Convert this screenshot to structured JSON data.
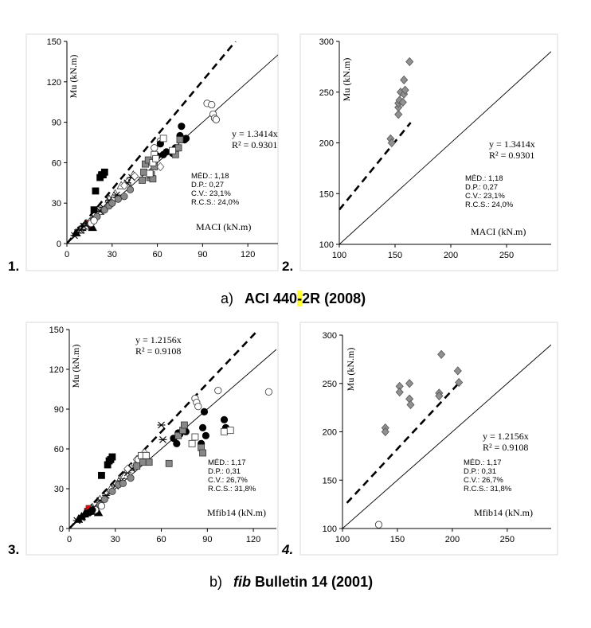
{
  "captions": {
    "a_letter": "a)",
    "a_pre": "ACI 440",
    "a_hl": "-",
    "a_post": "2R (2008)",
    "b_letter": "b)",
    "b_italic": "fib",
    "b_post": " Bulletin 14 (2001)"
  },
  "chart_data": [
    {
      "id": "p1",
      "panel_label": "1.",
      "type": "scatter",
      "xlabel": "MACI (kN.m)",
      "ylabel": "Mu (kN.m)",
      "xlim": [
        0,
        140
      ],
      "ylim": [
        0,
        150
      ],
      "xticks": [
        0,
        30,
        60,
        90,
        120
      ],
      "yticks": [
        0,
        30,
        60,
        90,
        120,
        150
      ],
      "trend_slope": 1.3414,
      "equation": "y = 1.3414x",
      "r2": "R² = 0.9301",
      "stats": [
        "MÉD.: 1,18",
        "D.P.: 0,27",
        "C.V.: 23,1%",
        "R.C.S.: 24,0%"
      ],
      "series": [
        {
          "marker": "square",
          "fill": "#000000",
          "x": [
            18,
            19,
            22,
            23,
            24,
            25
          ],
          "y": [
            25,
            39,
            49,
            51,
            51,
            53
          ]
        },
        {
          "marker": "square",
          "fill": "#ff0000",
          "x": [
            13,
            14
          ],
          "y": [
            13,
            15
          ]
        },
        {
          "marker": "triangle",
          "fill": "#000000",
          "x": [
            6,
            8,
            10,
            12,
            17
          ],
          "y": [
            8,
            10,
            12,
            14,
            12
          ]
        },
        {
          "marker": "triangle",
          "fill": "#ffffff",
          "x": [
            9,
            12,
            15,
            17,
            22,
            28,
            32,
            36,
            40,
            44
          ],
          "y": [
            10,
            13,
            16,
            18,
            24,
            33,
            37,
            43,
            46,
            51
          ]
        },
        {
          "marker": "cross",
          "fill": "#000000",
          "x": [
            5,
            7,
            9,
            11,
            14,
            18,
            22,
            24,
            28,
            33,
            40,
            43
          ],
          "y": [
            6,
            8,
            10,
            13,
            15,
            19,
            24,
            27,
            32,
            36,
            45,
            49
          ]
        },
        {
          "marker": "diamond",
          "fill": "#ffffff",
          "x": [
            30,
            38,
            45,
            55,
            62
          ],
          "y": [
            30,
            43,
            50,
            61,
            57
          ]
        },
        {
          "marker": "circle",
          "fill": "#888888",
          "x": [
            20,
            25,
            28,
            30,
            34,
            38,
            42
          ],
          "y": [
            20,
            25,
            28,
            30,
            33,
            35,
            40
          ]
        },
        {
          "marker": "circle",
          "fill": "#ffffff",
          "x": [
            16,
            18,
            58,
            62,
            93,
            96,
            97,
            98,
            99
          ],
          "y": [
            15,
            17,
            71,
            76,
            104,
            103,
            96,
            93,
            92
          ]
        },
        {
          "marker": "circle",
          "fill": "#000000",
          "x": [
            60,
            62,
            64,
            66,
            70,
            72,
            75,
            76,
            78,
            79
          ],
          "y": [
            65,
            74,
            66,
            68,
            67,
            71,
            80,
            87,
            77,
            78
          ]
        },
        {
          "marker": "square",
          "fill": "#888888",
          "x": [
            50,
            51,
            52,
            54,
            55,
            56,
            57,
            58,
            72,
            74,
            75
          ],
          "y": [
            47,
            53,
            59,
            62,
            49,
            51,
            48,
            57,
            66,
            71,
            77
          ]
        },
        {
          "marker": "square",
          "fill": "#ffffff",
          "x": [
            55,
            57,
            58,
            59,
            64,
            70
          ],
          "y": [
            52,
            60,
            66,
            63,
            78,
            69
          ]
        }
      ]
    },
    {
      "id": "p2",
      "panel_label": "2.",
      "type": "scatter",
      "xlabel": "MACI (kN.m)",
      "ylabel": "Mu (kN.m)",
      "xlim": [
        100,
        290
      ],
      "ylim": [
        100,
        300
      ],
      "xticks": [
        100,
        150,
        200,
        250
      ],
      "yticks": [
        100,
        150,
        200,
        250,
        300
      ],
      "trend_slope": 1.3414,
      "equation": "y = 1.3414x",
      "r2": "R² = 0.9301",
      "stats": [
        "MÉD.: 1,18",
        "D.P.: 0,27",
        "C.V.: 23,1%",
        "R.C.S.: 24,0%"
      ],
      "series": [
        {
          "marker": "diamond",
          "fill": "#909090",
          "x": [
            146,
            147,
            153,
            153,
            153,
            154,
            155,
            157,
            158,
            158,
            159,
            163
          ],
          "y": [
            204,
            200,
            228,
            235,
            239,
            242,
            250,
            240,
            248,
            262,
            252,
            280
          ]
        }
      ]
    },
    {
      "id": "p3",
      "panel_label": "3.",
      "type": "scatter",
      "xlabel": "Mfib14 (kN.m)",
      "ylabel": "Mu (kN.m)",
      "xlim": [
        0,
        135
      ],
      "ylim": [
        0,
        150
      ],
      "xticks": [
        0,
        30,
        60,
        90,
        120
      ],
      "yticks": [
        0,
        30,
        60,
        90,
        120,
        150
      ],
      "trend_slope": 1.2156,
      "equation": "y = 1.2156x",
      "r2": "R² = 0.9108",
      "stats": [
        "MÉD.: 1,17",
        "D.P.: 0,31",
        "C.V.: 26,7%",
        "R.C.S.: 31,8%"
      ],
      "series": [
        {
          "marker": "square",
          "fill": "#000000",
          "x": [
            21,
            25,
            26,
            27,
            28
          ],
          "y": [
            40,
            48,
            51,
            52,
            54
          ]
        },
        {
          "marker": "square",
          "fill": "#ff0000",
          "x": [
            12,
            13
          ],
          "y": [
            13,
            15
          ]
        },
        {
          "marker": "triangle",
          "fill": "#000000",
          "x": [
            6,
            8,
            10,
            14,
            19
          ],
          "y": [
            7,
            9,
            11,
            13,
            12
          ]
        },
        {
          "marker": "triangle",
          "fill": "#ffffff",
          "x": [
            15,
            20,
            27,
            33,
            36,
            40,
            44
          ],
          "y": [
            16,
            22,
            30,
            37,
            40,
            46,
            50
          ]
        },
        {
          "marker": "cross",
          "fill": "#000000",
          "x": [
            5,
            8,
            12,
            16,
            20,
            24,
            30,
            34,
            38,
            41,
            60,
            61
          ],
          "y": [
            6,
            8,
            12,
            16,
            21,
            25,
            32,
            36,
            42,
            45,
            78,
            67
          ]
        },
        {
          "marker": "diamond",
          "fill": "#ffffff",
          "x": [
            38,
            44,
            49
          ],
          "y": [
            45,
            52,
            57
          ]
        },
        {
          "marker": "circle",
          "fill": "#888888",
          "x": [
            20,
            23,
            28,
            32,
            35,
            40
          ],
          "y": [
            18,
            22,
            28,
            33,
            34,
            38
          ]
        },
        {
          "marker": "circle",
          "fill": "#ffffff",
          "x": [
            17,
            21,
            45,
            82,
            83,
            84,
            97,
            130
          ],
          "y": [
            14,
            17,
            52,
            98,
            95,
            92,
            104,
            103
          ]
        },
        {
          "marker": "circle",
          "fill": "#000000",
          "x": [
            13,
            15,
            68,
            70,
            71,
            72,
            76,
            86,
            87,
            88,
            89,
            101,
            102
          ],
          "y": [
            12,
            14,
            68,
            64,
            72,
            71,
            73,
            64,
            76,
            88,
            70,
            82,
            76
          ]
        },
        {
          "marker": "square",
          "fill": "#888888",
          "x": [
            44,
            48,
            50,
            52,
            65,
            71,
            74,
            75,
            86,
            87
          ],
          "y": [
            47,
            50,
            55,
            50,
            49,
            70,
            74,
            78,
            61,
            57
          ]
        },
        {
          "marker": "square",
          "fill": "#ffffff",
          "x": [
            47,
            50,
            80,
            82,
            101,
            105
          ],
          "y": [
            55,
            55,
            64,
            69,
            73,
            74
          ]
        }
      ]
    },
    {
      "id": "p4",
      "panel_label": "4.",
      "type": "scatter",
      "xlabel": "Mfib14 (kN.m)",
      "ylabel": "Mu (kN.m)",
      "xlim": [
        100,
        290
      ],
      "ylim": [
        100,
        300
      ],
      "xticks": [
        100,
        150,
        200,
        250
      ],
      "yticks": [
        100,
        150,
        200,
        250,
        300
      ],
      "trend_slope": 1.2156,
      "equation": "y = 1.2156x",
      "r2": "R² = 0.9108",
      "stats": [
        "MÉD.: 1,17",
        "D.P.: 0,31",
        "C.V.: 26,7%",
        "R.C.S.: 31,8%"
      ],
      "series": [
        {
          "marker": "diamond",
          "fill": "#909090",
          "x": [
            139,
            139,
            152,
            152,
            161,
            161,
            162,
            188,
            188,
            190,
            205,
            206
          ],
          "y": [
            204,
            200,
            247,
            241,
            250,
            234,
            228,
            240,
            237,
            280,
            263,
            251
          ]
        },
        {
          "marker": "circle",
          "fill": "#ffffff",
          "x": [
            133
          ],
          "y": [
            104
          ]
        }
      ]
    }
  ]
}
